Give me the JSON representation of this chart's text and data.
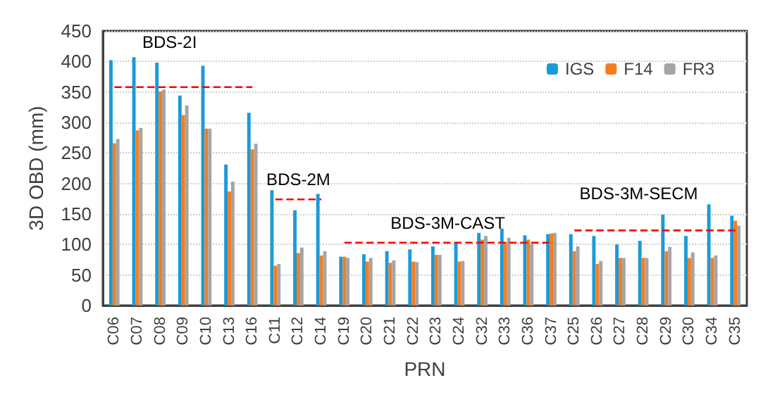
{
  "chart_data": {
    "type": "bar",
    "xlabel": "PRN",
    "ylabel": "3D OBD (mm)",
    "categories": [
      "C06",
      "C07",
      "C08",
      "C09",
      "C10",
      "C13",
      "C16",
      "C11",
      "C12",
      "C14",
      "C19",
      "C20",
      "C21",
      "C22",
      "C23",
      "C24",
      "C32",
      "C33",
      "C36",
      "C37",
      "C25",
      "C26",
      "C27",
      "C28",
      "C29",
      "C30",
      "C34",
      "C35"
    ],
    "series": [
      {
        "name": "IGS",
        "color": "#1c9ad6",
        "values": [
          402,
          407,
          398,
          344,
          393,
          231,
          316,
          189,
          156,
          183,
          80,
          84,
          89,
          92,
          97,
          103,
          119,
          126,
          115,
          117,
          117,
          114,
          100,
          106,
          149,
          114,
          166,
          147
        ]
      },
      {
        "name": "F14",
        "color": "#f47d22",
        "values": [
          266,
          287,
          351,
          312,
          290,
          187,
          256,
          65,
          86,
          82,
          80,
          72,
          70,
          72,
          83,
          72,
          108,
          104,
          108,
          118,
          89,
          68,
          78,
          78,
          89,
          78,
          78,
          139
        ]
      },
      {
        "name": "FR3",
        "color": "#a5a5a5",
        "values": [
          273,
          291,
          354,
          328,
          290,
          203,
          265,
          68,
          95,
          89,
          78,
          78,
          74,
          71,
          83,
          73,
          114,
          111,
          101,
          119,
          97,
          73,
          78,
          78,
          96,
          87,
          82,
          131
        ]
      },
      {
        "type": "line",
        "color": "#ff0000",
        "line_style": "dashed",
        "marker": "none",
        "x": [
          "C06",
          "C16"
        ],
        "values": [
          358,
          358
        ]
      },
      {
        "type": "line",
        "color": "#ff0000",
        "line_style": "dashed",
        "marker": "none",
        "x": [
          "C11",
          "C14"
        ],
        "values": [
          174,
          174
        ]
      },
      {
        "type": "line",
        "color": "#ff0000",
        "line_style": "dashed",
        "marker": "none",
        "x": [
          "C19",
          "C37"
        ],
        "values": [
          103,
          103
        ]
      },
      {
        "type": "line",
        "color": "#ff0000",
        "line_style": "dashed",
        "marker": "none",
        "x": [
          "C25",
          "C35"
        ],
        "values": [
          123,
          123
        ]
      }
    ],
    "annotations": [
      "BDS-2I",
      "BDS-2M",
      "BDS-3M-CAST",
      "BDS-3M-SECM"
    ],
    "ylim": [
      0,
      450
    ],
    "yticks": [
      0,
      50,
      100,
      150,
      200,
      250,
      300,
      350,
      400,
      450
    ],
    "grid": "y",
    "legend": "top right"
  }
}
